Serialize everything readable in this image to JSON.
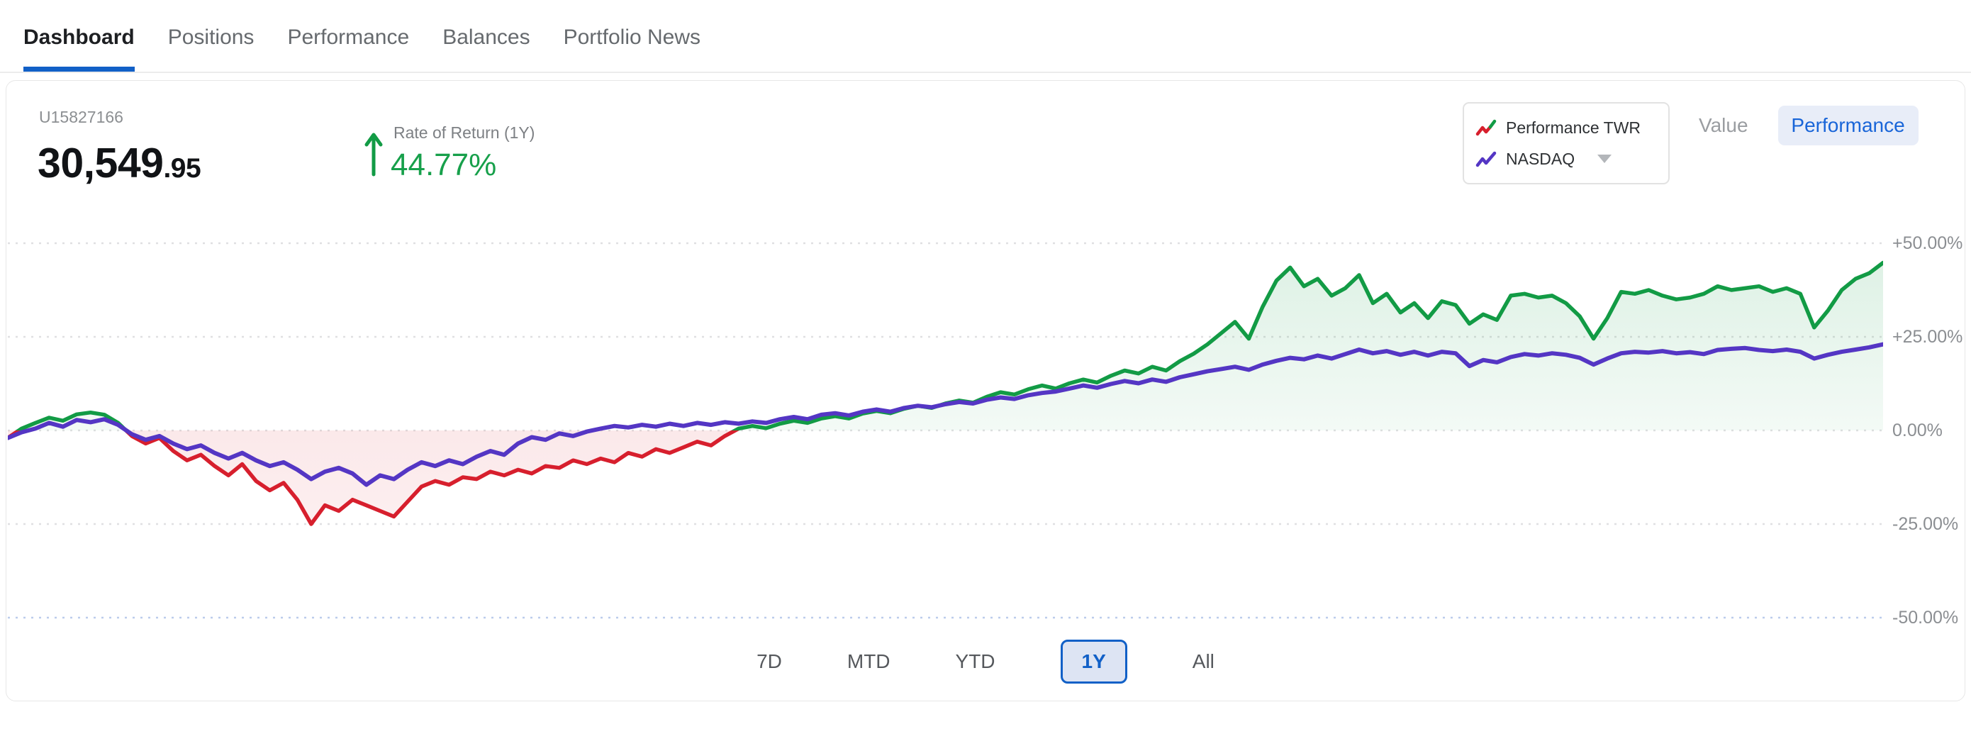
{
  "tabs": {
    "items": [
      {
        "label": "Dashboard",
        "active": true
      },
      {
        "label": "Positions",
        "active": false
      },
      {
        "label": "Performance",
        "active": false
      },
      {
        "label": "Balances",
        "active": false
      },
      {
        "label": "Portfolio News",
        "active": false
      }
    ]
  },
  "account": {
    "id": "U15827166",
    "value_main": "30,549",
    "value_fraction": ".95"
  },
  "rate_of_return": {
    "label": "Rate of Return (1Y)",
    "value": "44.77%"
  },
  "legend": {
    "items": [
      {
        "label": "Performance TWR"
      },
      {
        "label": "NASDAQ"
      }
    ]
  },
  "view_toggle": {
    "options": [
      {
        "label": "Value",
        "active": false
      },
      {
        "label": "Performance",
        "active": true
      }
    ]
  },
  "range_buttons": [
    {
      "label": "7D",
      "selected": false
    },
    {
      "label": "MTD",
      "selected": false
    },
    {
      "label": "YTD",
      "selected": false
    },
    {
      "label": "1Y",
      "selected": true
    },
    {
      "label": "All",
      "selected": false
    }
  ],
  "colors": {
    "accent_blue": "#1160c7",
    "toggle_text_blue": "#1965d8",
    "toggle_bg": "#e8edf8",
    "range_selected_bg": "#dde4f3",
    "green": "#129b45",
    "red": "#d71f2d",
    "purple": "#5436c4",
    "grid_gray": "#e0e0e2",
    "grid_blue_bottom": "#bcccec",
    "green_text": "#17a04b"
  },
  "chart_data": {
    "type": "line",
    "x_label": "",
    "y_label": "",
    "ylim": [
      -50,
      50
    ],
    "baseline": 0,
    "grid": "horizontal-dotted",
    "legend_position": "top-right",
    "y_ticks": [
      "+50.00%",
      "+25.00%",
      "0.00%",
      "-25.00%",
      "-50.00%"
    ],
    "y_tick_values": [
      50,
      25,
      0,
      -25,
      -50
    ],
    "unit": "percent",
    "fill": "area-to-zero-on-first-series",
    "series": [
      {
        "name": "Performance TWR",
        "color_positive": "#129b45",
        "color_negative": "#d71f2d",
        "values": [
          -2.0,
          0.5,
          2.0,
          3.4,
          2.6,
          4.3,
          4.8,
          4.2,
          2.0,
          -1.5,
          -3.5,
          -2.0,
          -5.5,
          -8.0,
          -6.5,
          -9.5,
          -12.0,
          -9.0,
          -13.5,
          -16.0,
          -14.0,
          -18.5,
          -25.0,
          -20.0,
          -21.5,
          -18.5,
          -20.0,
          -21.5,
          -23.0,
          -19.0,
          -15.0,
          -13.5,
          -14.5,
          -12.5,
          -13.0,
          -11.0,
          -12.0,
          -10.5,
          -11.5,
          -9.5,
          -10.0,
          -8.0,
          -9.0,
          -7.5,
          -8.5,
          -6.0,
          -7.0,
          -5.0,
          -6.0,
          -4.5,
          -3.0,
          -4.0,
          -1.5,
          0.5,
          1.2,
          0.6,
          1.8,
          2.6,
          2.0,
          3.2,
          3.8,
          3.2,
          4.5,
          5.2,
          4.6,
          5.8,
          6.6,
          6.0,
          7.2,
          8.0,
          7.4,
          9.0,
          10.2,
          9.6,
          11.0,
          12.0,
          11.2,
          12.6,
          13.6,
          12.8,
          14.6,
          16.0,
          15.2,
          17.0,
          16.0,
          18.5,
          20.5,
          23.0,
          26.0,
          29.0,
          24.5,
          33.0,
          40.0,
          43.5,
          38.5,
          40.5,
          36.0,
          38.0,
          41.5,
          34.0,
          36.5,
          31.5,
          34.0,
          30.0,
          34.5,
          33.5,
          28.5,
          31.0,
          29.5,
          36.0,
          36.5,
          35.5,
          36.0,
          34.0,
          30.5,
          24.5,
          30.0,
          37.0,
          36.5,
          37.5,
          36.0,
          35.0,
          35.5,
          36.5,
          38.5,
          37.5,
          38.0,
          38.5,
          37.0,
          38.0,
          36.5,
          27.5,
          32.0,
          37.5,
          40.5,
          42.0,
          44.8
        ]
      },
      {
        "name": "NASDAQ",
        "color": "#5436c4",
        "values": [
          -2.0,
          -0.5,
          0.5,
          2.0,
          1.0,
          2.8,
          2.2,
          3.0,
          1.5,
          -1.0,
          -2.5,
          -1.5,
          -3.5,
          -5.0,
          -4.0,
          -6.0,
          -7.5,
          -6.0,
          -8.0,
          -9.5,
          -8.5,
          -10.5,
          -13.0,
          -11.0,
          -10.0,
          -11.5,
          -14.5,
          -12.0,
          -13.0,
          -10.5,
          -8.5,
          -9.5,
          -8.0,
          -9.0,
          -7.0,
          -5.5,
          -6.5,
          -3.5,
          -1.8,
          -2.5,
          -0.8,
          -1.5,
          -0.3,
          0.5,
          1.2,
          0.8,
          1.5,
          1.0,
          1.8,
          1.2,
          2.0,
          1.5,
          2.2,
          1.8,
          2.4,
          2.0,
          3.0,
          3.6,
          3.0,
          4.2,
          4.6,
          4.0,
          5.0,
          5.6,
          5.0,
          6.0,
          6.6,
          6.2,
          7.0,
          7.6,
          7.2,
          8.2,
          8.8,
          8.4,
          9.4,
          10.0,
          10.4,
          11.2,
          12.0,
          11.4,
          12.4,
          13.2,
          12.6,
          13.6,
          13.0,
          14.2,
          15.0,
          15.8,
          16.4,
          17.0,
          16.2,
          17.6,
          18.6,
          19.4,
          19.0,
          20.0,
          19.2,
          20.4,
          21.6,
          20.6,
          21.2,
          20.2,
          21.0,
          20.0,
          21.0,
          20.6,
          17.2,
          18.8,
          18.2,
          19.6,
          20.4,
          20.0,
          20.6,
          20.2,
          19.4,
          17.6,
          19.2,
          20.6,
          21.0,
          20.8,
          21.2,
          20.6,
          20.9,
          20.4,
          21.5,
          21.8,
          22.0,
          21.5,
          21.2,
          21.6,
          21.0,
          19.2,
          20.2,
          21.0,
          21.6,
          22.2,
          23.0
        ]
      }
    ]
  }
}
